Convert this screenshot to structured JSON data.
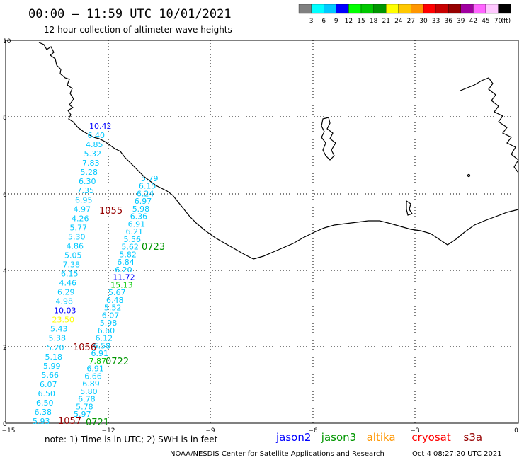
{
  "header": {
    "title": "00:00 – 11:59 UTC 10/01/2021",
    "subtitle": "12 hour collection of altimeter wave heights"
  },
  "colorbar": {
    "unit": "(ft)",
    "bins": [
      {
        "color": "#808080",
        "label": "3"
      },
      {
        "color": "#00ffff",
        "label": "6"
      },
      {
        "color": "#00c8ff",
        "label": "9"
      },
      {
        "color": "#0000ff",
        "label": "12"
      },
      {
        "color": "#00ff00",
        "label": "15"
      },
      {
        "color": "#00c800",
        "label": "18"
      },
      {
        "color": "#009600",
        "label": "21"
      },
      {
        "color": "#ffff00",
        "label": "24"
      },
      {
        "color": "#ffc800",
        "label": "27"
      },
      {
        "color": "#ff9600",
        "label": "30"
      },
      {
        "color": "#ff0000",
        "label": "33"
      },
      {
        "color": "#c80000",
        "label": "36"
      },
      {
        "color": "#960000",
        "label": "39"
      },
      {
        "color": "#a000a0",
        "label": "42"
      },
      {
        "color": "#ff64ff",
        "label": "45"
      },
      {
        "color": "#ffc8ff",
        "label": "70"
      },
      {
        "color": "#000000",
        "label": ""
      }
    ]
  },
  "axes": {
    "x_ticks": [
      "−15",
      "−12",
      "−9",
      "−6",
      "−3",
      "0"
    ],
    "y_ticks": [
      "0",
      "2",
      "4",
      "6",
      "8",
      "10"
    ]
  },
  "tracks": [
    {
      "time": "1055",
      "time_color": "#960000",
      "label_color": "#00c8ff",
      "values": [
        "10.42",
        "6.40",
        "4.85",
        "5.32",
        "7.83",
        "5.28",
        "6.30",
        "7.35",
        "6.95",
        "4.97",
        "4.26",
        "5.77",
        "5.30",
        "4.86",
        "5.05",
        "7.38",
        "6.15",
        "4.46",
        "6.29",
        "4.98",
        "10.03",
        "23.50",
        "5.43",
        "5.38",
        "5.20",
        "5.18",
        "5.99",
        "5.66",
        "6.07",
        "6.50",
        "6.50",
        "6.38",
        "5.93"
      ],
      "value_colors": {
        "10.42": "#0000ff",
        "10.03": "#0000ff",
        "23.50": "#ffff00"
      }
    },
    {
      "time": "0723",
      "time_color": "#009600",
      "label_color": "#00c8ff",
      "values": [
        "5.79",
        "6.15",
        "6.24",
        "6.97",
        "5.98",
        "6.36",
        "6.91",
        "6.21",
        "5.56",
        "5.62",
        "5.82",
        "6.84",
        "6.20",
        "11.72",
        "15.13",
        "5.67",
        "6.48",
        "5.52",
        "6.07",
        "5.98",
        "6.60",
        "6.12",
        "6.58",
        "6.91",
        "7.87",
        "6.91",
        "6.66",
        "6.89",
        "5.80",
        "6.78",
        "5.78",
        "5.97"
      ],
      "value_colors": {
        "11.72": "#0000ff",
        "15.13": "#00c800",
        "7.87": "#00c800"
      }
    }
  ],
  "time_labels": [
    "1055",
    "0723",
    "1056",
    "0722",
    "1057",
    "0721"
  ],
  "footer": {
    "note": "note:  1) Time is in UTC;  2) SWH is in feet",
    "legend": [
      {
        "name": "jason2",
        "color": "#0000ff"
      },
      {
        "name": "jason3",
        "color": "#009600"
      },
      {
        "name": "altika",
        "color": "#ff9600"
      },
      {
        "name": "cryosat",
        "color": "#ff0000"
      },
      {
        "name": "s3a",
        "color": "#960000"
      }
    ],
    "credit": "NOAA/NESDIS Center for Satellite Applications and Research",
    "timestamp": "Oct  4 08:27:20 UTC 2021"
  }
}
